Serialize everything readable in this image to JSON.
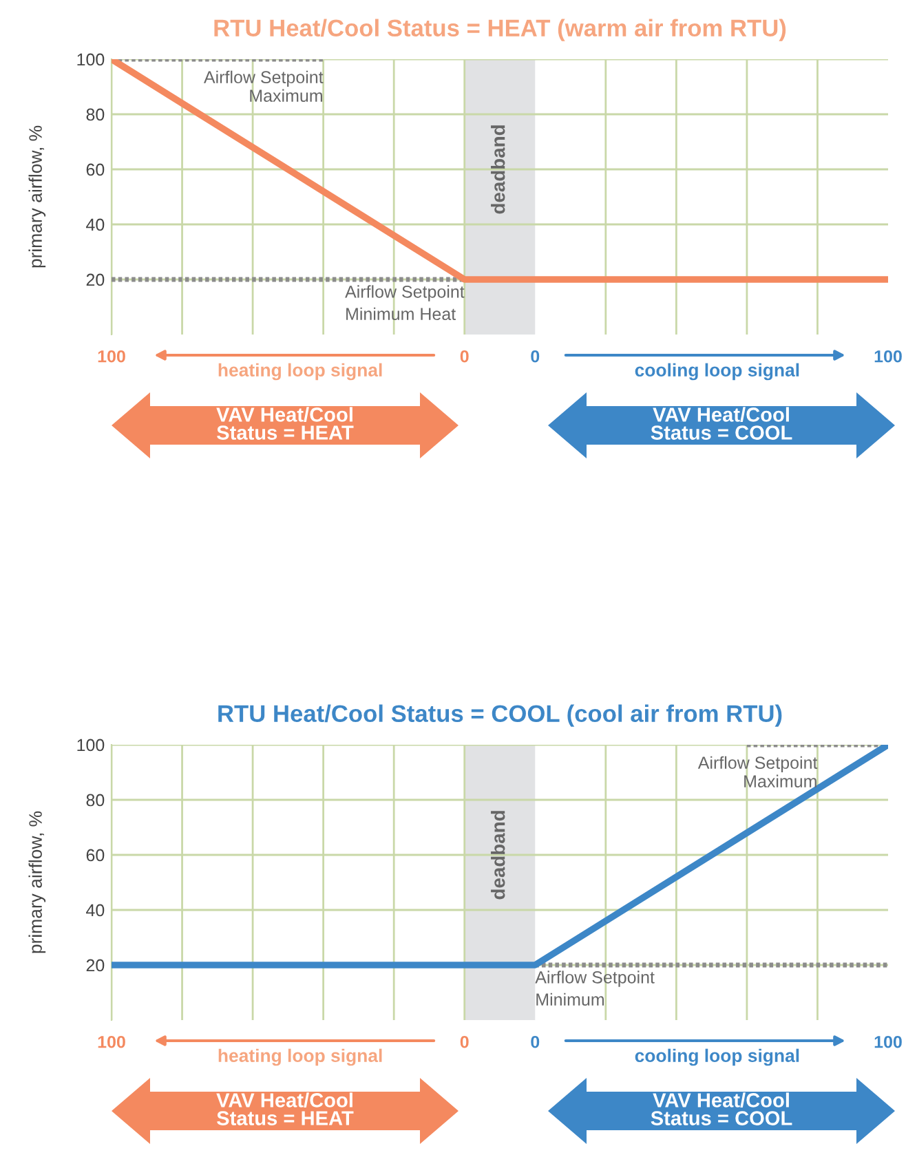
{
  "chart_data": [
    {
      "type": "line",
      "title": "RTU Heat/Cool Status = HEAT (warm air from RTU)",
      "ylabel": "primary airflow, %",
      "x": [
        100,
        0,
        -120
      ],
      "series": [
        {
          "color": "#f4895f",
          "values": [
            100,
            20,
            20
          ]
        },
        {
          "type": "line",
          "line_style": "dotted",
          "color": "#8c8c8c",
          "x": [
            100,
            40
          ],
          "values": [
            100,
            100
          ]
        },
        {
          "type": "line",
          "line_style": "dotted",
          "color": "#8c8c8c",
          "x": [
            100,
            0
          ],
          "values": [
            20,
            20
          ]
        }
      ],
      "xlim": [
        100,
        -120
      ],
      "xticks": [
        100,
        {
          "value": 80,
          "label": null
        },
        {
          "value": 60,
          "label": null
        },
        {
          "value": 40,
          "label": null
        },
        {
          "value": 20,
          "label": null
        },
        0,
        {
          "value": -40,
          "label": null
        },
        {
          "value": -60,
          "label": null
        },
        {
          "value": -80,
          "label": null
        },
        {
          "value": -100,
          "label": null
        }
      ],
      "x2lim": [
        -120,
        100
      ],
      "x2ticks": [
        0,
        100
      ],
      "ylim": [
        0,
        100
      ],
      "yticks": [
        20,
        40,
        60,
        80,
        100
      ],
      "grid": true,
      "bands": [
        {
          "axis": "x",
          "from": 0,
          "to": -20,
          "label": "deadband",
          "color": "#e1e2e4"
        }
      ],
      "annotations": [
        {
          "text": "Airflow Setpoint\nMaximum",
          "x": 40,
          "y": 100
        },
        {
          "text": "Airflow Setpoint\nMinimum Heat",
          "x": 0,
          "y": 20
        },
        "heating loop signal",
        "cooling loop signal",
        "VAV Heat/Cool\nStatus = HEAT",
        "VAV Heat/Cool\nStatus = COOL"
      ]
    },
    {
      "type": "line",
      "title": "RTU Heat/Cool Status = COOL (cool air from RTU)",
      "ylabel": "primary airflow, %",
      "x": [
        100,
        -20,
        -120
      ],
      "series": [
        {
          "color": "#3d87c7",
          "values": [
            20,
            20,
            100
          ]
        },
        {
          "type": "line",
          "line_style": "dotted",
          "color": "#8c8c8c",
          "x": [
            -80,
            -120
          ],
          "values": [
            100,
            100
          ]
        },
        {
          "type": "line",
          "line_style": "dotted",
          "color": "#8c8c8c",
          "x": [
            -20,
            -120
          ],
          "values": [
            20,
            20
          ]
        }
      ],
      "xlim": [
        100,
        -120
      ],
      "xticks": [
        100,
        {
          "value": 80,
          "label": null
        },
        {
          "value": 60,
          "label": null
        },
        {
          "value": 40,
          "label": null
        },
        {
          "value": 20,
          "label": null
        },
        0,
        {
          "value": -40,
          "label": null
        },
        {
          "value": -60,
          "label": null
        },
        {
          "value": -80,
          "label": null
        },
        {
          "value": -100,
          "label": null
        }
      ],
      "x2lim": [
        -120,
        100
      ],
      "x2ticks": [
        0,
        100
      ],
      "ylim": [
        0,
        100
      ],
      "yticks": [
        20,
        40,
        60,
        80,
        100
      ],
      "grid": true,
      "bands": [
        {
          "axis": "x",
          "from": 0,
          "to": -20,
          "label": "deadband",
          "color": "#e1e2e4"
        }
      ],
      "annotations": [
        {
          "text": "Airflow Setpoint\nMaximum",
          "x": -100,
          "y": 100
        },
        {
          "text": "Airflow Setpoint\nMinimum",
          "x": -20,
          "y": 20
        },
        "heating loop signal",
        "cooling loop signal",
        "VAV Heat/Cool\nStatus = HEAT",
        "VAV Heat/Cool\nStatus = COOL"
      ]
    }
  ]
}
